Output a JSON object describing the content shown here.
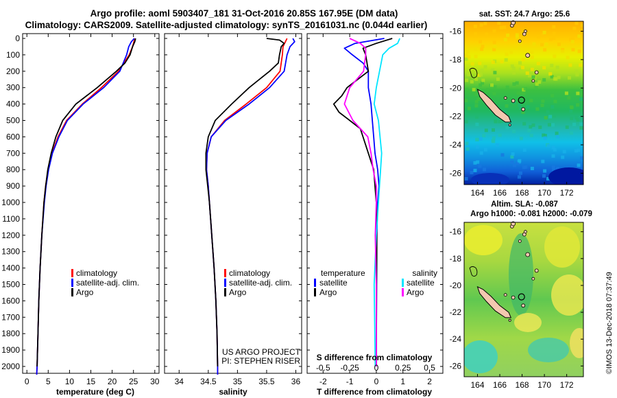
{
  "header": {
    "line1": "Argo profile: aoml 5903407_181 31-Oct-2016 20.85S 167.95E (DM data)",
    "line2": "Climatology: CARS2009. Satellite-adjusted climatology: synTS_20161031.nc (0.044d earlier)"
  },
  "colors": {
    "climatology": "#ff0000",
    "satellite": "#0000ff",
    "argo": "#000000",
    "sat_salinity": "#00e5ff",
    "argo_salinity": "#ff00ff"
  },
  "credit": {
    "line1": "US ARGO PROJECT",
    "line2": "PI: STEPHEN RISER"
  },
  "stamp": "©IMOS 13-Dec-2018 07:37:49",
  "chart_data": [
    {
      "type": "line",
      "name": "temperature-profile",
      "xlabel": "temperature (deg C)",
      "xlim": [
        -1,
        31
      ],
      "xticks": [
        0,
        5,
        10,
        15,
        20,
        25,
        30
      ],
      "ylim": [
        2050,
        0
      ],
      "yticks": [
        0,
        100,
        200,
        300,
        400,
        500,
        600,
        700,
        800,
        900,
        1000,
        1100,
        1200,
        1300,
        1400,
        1500,
        1600,
        1700,
        1800,
        1900,
        2000
      ],
      "legend": [
        "climatology",
        "satellite-adj. clim.",
        "Argo"
      ],
      "series": [
        {
          "key": "climatology",
          "depth": [
            0,
            50,
            100,
            200,
            300,
            400,
            500,
            600,
            700,
            800,
            900,
            1000,
            1200,
            1400,
            1600,
            1800,
            2000,
            2050
          ],
          "values": [
            25.3,
            24.8,
            24,
            21.5,
            17.5,
            13,
            9.3,
            7.3,
            5.9,
            5.0,
            4.4,
            4.0,
            3.5,
            3.1,
            2.8,
            2.6,
            2.4,
            2.3
          ]
        },
        {
          "key": "satellite",
          "depth": [
            0,
            20,
            50,
            100,
            200,
            300,
            400,
            500,
            600,
            700,
            800,
            900,
            1000,
            1200,
            1400,
            1600,
            1800,
            2000,
            2050
          ],
          "values": [
            25.2,
            24.5,
            23.9,
            23.4,
            21.8,
            18,
            13.2,
            9.5,
            7.5,
            6.0,
            5.1,
            4.5,
            4.1,
            3.5,
            3.1,
            2.8,
            2.6,
            2.4,
            2.3
          ]
        },
        {
          "key": "argo",
          "depth": [
            0,
            20,
            50,
            100,
            150,
            200,
            300,
            400,
            500,
            600,
            700,
            800,
            900,
            1000,
            1200,
            1400,
            1600,
            1800,
            2000
          ],
          "values": [
            25.5,
            25.3,
            24.8,
            24.2,
            23,
            21,
            16.5,
            11.5,
            8.4,
            6.8,
            5.7,
            4.9,
            4.4,
            4.0,
            3.5,
            3.1,
            2.8,
            2.6,
            2.4
          ]
        }
      ]
    },
    {
      "type": "line",
      "name": "salinity-profile",
      "xlabel": "salinity",
      "xlim": [
        33.75,
        36.1
      ],
      "xticks": [
        34,
        34.5,
        35,
        35.5,
        36
      ],
      "ylim": [
        2050,
        0
      ],
      "legend": [
        "climatology",
        "satellite-adj. clim.",
        "Argo"
      ],
      "series": [
        {
          "key": "climatology",
          "depth": [
            0,
            50,
            100,
            200,
            300,
            400,
            500,
            600,
            700,
            800,
            900,
            1000,
            1200,
            1400,
            1600,
            1800,
            2000,
            2050
          ],
          "values": [
            35.85,
            35.78,
            35.77,
            35.73,
            35.5,
            35.15,
            34.78,
            34.55,
            34.48,
            34.47,
            34.5,
            34.52,
            34.56,
            34.6,
            34.63,
            34.65,
            34.66,
            34.66
          ]
        },
        {
          "key": "satellite",
          "depth": [
            0,
            20,
            50,
            100,
            200,
            300,
            400,
            500,
            600,
            700,
            800,
            900,
            1000,
            1200,
            1400,
            1600,
            1800,
            2000,
            2050
          ],
          "values": [
            35.95,
            35.98,
            35.9,
            35.85,
            35.8,
            35.55,
            35.2,
            34.8,
            34.55,
            34.48,
            34.47,
            34.5,
            34.52,
            34.56,
            34.6,
            34.63,
            34.65,
            34.66,
            34.66
          ]
        },
        {
          "key": "argo",
          "depth": [
            0,
            10,
            30,
            50,
            100,
            150,
            200,
            300,
            400,
            500,
            600,
            700,
            800,
            900,
            1000,
            1200,
            1400,
            1600,
            1800,
            2000
          ],
          "values": [
            35.5,
            35.72,
            35.8,
            35.75,
            35.72,
            35.7,
            35.55,
            35.2,
            34.9,
            34.62,
            34.5,
            34.46,
            34.46,
            34.49,
            34.52,
            34.56,
            34.6,
            34.63,
            34.65,
            34.66
          ]
        }
      ]
    },
    {
      "type": "line",
      "name": "difference-profile",
      "xlabel": "T difference from climatology",
      "xlim": [
        -2.6,
        2.5
      ],
      "xticks": [
        -2,
        -1,
        0,
        1,
        2
      ],
      "top_axis_label": "S difference from climatology",
      "top_ticks": [
        "-0.5",
        "-0.25",
        "0",
        "0.25",
        "0.5"
      ],
      "ylim": [
        2050,
        0
      ],
      "legend_left_title": "temperature",
      "legend_right_title": "salinity",
      "legend": [
        "satellite",
        "Argo"
      ],
      "series": [
        {
          "key": "temp-satellite",
          "depth": [
            0,
            30,
            60,
            100,
            150,
            200,
            300,
            400,
            500,
            600,
            700,
            800,
            900,
            1000,
            1200,
            1500,
            2000
          ],
          "values": [
            0.3,
            -0.8,
            -1.2,
            -0.9,
            -0.5,
            -0.3,
            -0.3,
            -0.2,
            -0.15,
            -0.1,
            -0.05,
            0.05,
            0.1,
            0.05,
            0.02,
            0.01,
            0
          ]
        },
        {
          "key": "temp-argo",
          "depth": [
            0,
            30,
            60,
            100,
            200,
            300,
            350,
            400,
            450,
            500,
            550,
            600,
            700,
            800,
            900,
            1000,
            1200,
            1500,
            2000
          ],
          "values": [
            0.6,
            0.0,
            -0.5,
            -0.4,
            -0.3,
            -1.1,
            -1.3,
            -1.6,
            -1.4,
            -1.0,
            -0.6,
            -0.5,
            -0.3,
            -0.1,
            -0.05,
            0.0,
            0.02,
            0.01,
            0
          ]
        },
        {
          "key": "sal-satellite",
          "depth": [
            0,
            30,
            60,
            100,
            200,
            300,
            400,
            500,
            700,
            900,
            1200,
            1500,
            2000
          ],
          "values": [
            0.22,
            0.2,
            0.12,
            0.06,
            0.03,
            0.0,
            -0.02,
            0.02,
            0.05,
            0.03,
            0.0,
            -0.02,
            -0.01
          ]
        },
        {
          "key": "sal-argo",
          "depth": [
            0,
            30,
            60,
            100,
            200,
            300,
            400,
            500,
            600,
            700,
            800,
            900,
            1000,
            1200,
            1500,
            2000
          ],
          "values": [
            -0.25,
            -0.15,
            -0.1,
            -0.1,
            -0.12,
            -0.25,
            -0.3,
            -0.22,
            -0.08,
            -0.05,
            -0.03,
            0.0,
            0.0,
            -0.01,
            0.0,
            0
          ]
        }
      ]
    },
    {
      "type": "heatmap",
      "name": "sst-map",
      "title": "sat. SST: 24.7 Argo: 25.6",
      "xticks": [
        "164",
        "166",
        "168",
        "170",
        "172"
      ],
      "yticks": [
        "-16",
        "-18",
        "-20",
        "-22",
        "-24",
        "-26"
      ],
      "xlim": [
        162.8,
        173.5
      ],
      "ylim": [
        -26.8,
        -15.3
      ],
      "float_position": [
        167.95,
        -20.85
      ]
    },
    {
      "type": "heatmap",
      "name": "sla-map",
      "title1": "Altim. SLA: -0.087",
      "title2": "Argo h1000: -0.081 h2000: -0.079",
      "xticks": [
        "164",
        "166",
        "168",
        "170",
        "172"
      ],
      "yticks": [
        "-16",
        "-18",
        "-20",
        "-22",
        "-24",
        "-26"
      ],
      "xlim": [
        162.8,
        173.5
      ],
      "ylim": [
        -26.8,
        -15.3
      ],
      "float_position": [
        167.95,
        -20.85
      ]
    }
  ]
}
